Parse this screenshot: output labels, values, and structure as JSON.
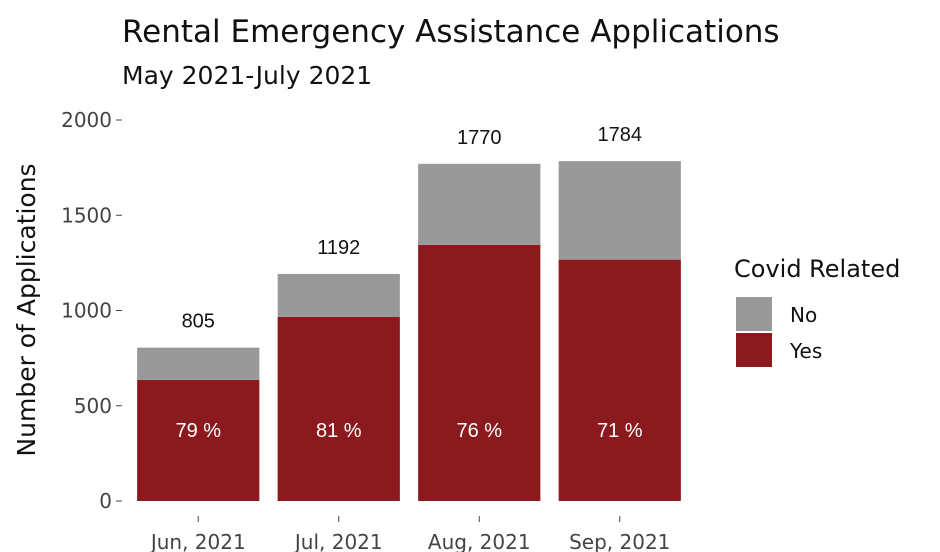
{
  "chart_data": {
    "type": "bar",
    "stacked": true,
    "title": "Rental Emergency Assistance Applications",
    "subtitle": "May 2021-July 2021",
    "xlabel": "",
    "ylabel": "Number of Applications",
    "ylim": [
      0,
      2000
    ],
    "yticks": [
      0,
      500,
      1000,
      1500,
      2000
    ],
    "categories": [
      "Jun, 2021",
      "Jul, 2021",
      "Aug, 2021",
      "Sep, 2021"
    ],
    "series": [
      {
        "name": "Yes",
        "color": "#8B1A1E",
        "values": [
          636,
          966,
          1345,
          1267
        ]
      },
      {
        "name": "No",
        "color": "#999999",
        "values": [
          169,
          226,
          425,
          517
        ]
      }
    ],
    "totals": [
      805,
      1192,
      1770,
      1784
    ],
    "total_labels": [
      "805",
      "1192",
      "1770",
      "1784"
    ],
    "percent_labels": [
      "79 %",
      "81 %",
      "76 %",
      "71 %"
    ],
    "legend": {
      "title": "Covid Related",
      "position": "right",
      "entries": [
        {
          "label": "No",
          "color": "#999999"
        },
        {
          "label": "Yes",
          "color": "#8B1A1E"
        }
      ]
    },
    "grid": false
  }
}
